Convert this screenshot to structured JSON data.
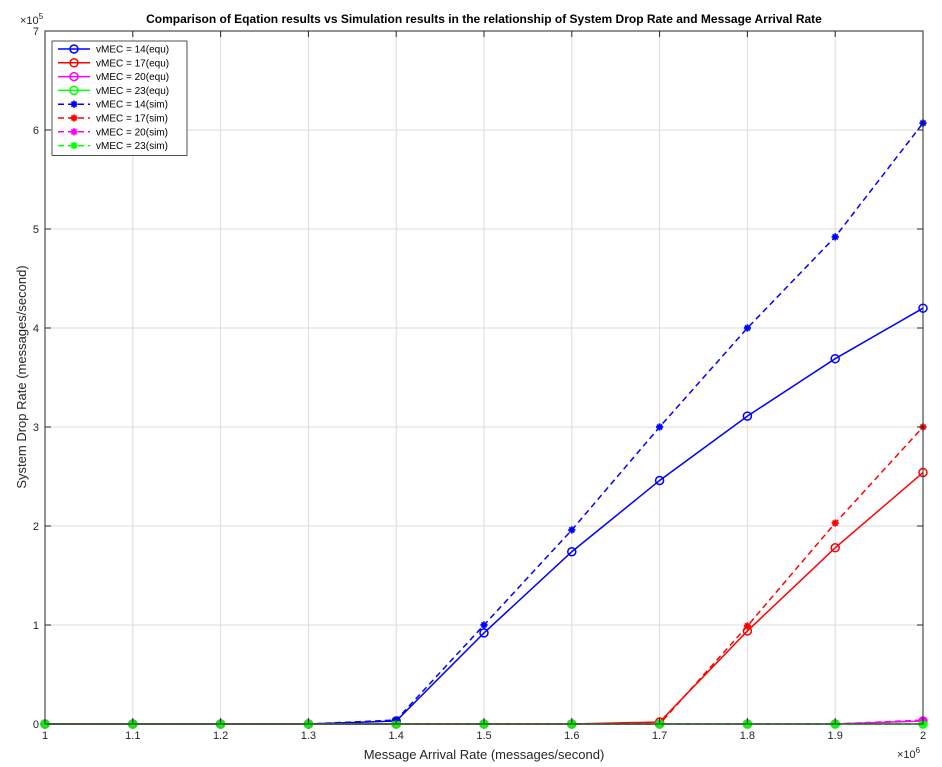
{
  "chart_data": {
    "type": "line",
    "title": "Comparison of Eqation results vs Simulation results in the relationship of System Drop Rate and Message Arrival Rate",
    "xlabel": "Message Arrival Rate (messages/second)",
    "ylabel": "System Drop Rate (messages/second)",
    "x_exponent_label": "×10",
    "x_exponent_power": "6",
    "y_exponent_label": "×10",
    "y_exponent_power": "5",
    "x_scale": 1000000,
    "y_scale": 100000,
    "xlim": [
      1,
      2
    ],
    "ylim": [
      0,
      7
    ],
    "xticks": [
      "1",
      "1.1",
      "1.2",
      "1.3",
      "1.4",
      "1.5",
      "1.6",
      "1.7",
      "1.8",
      "1.9",
      "2"
    ],
    "yticks": [
      "0",
      "1",
      "2",
      "3",
      "4",
      "5",
      "6",
      "7"
    ],
    "grid": true,
    "legend_position": "top-left",
    "x": [
      1.0,
      1.1,
      1.2,
      1.3,
      1.4,
      1.5,
      1.6,
      1.7,
      1.8,
      1.9,
      2.0
    ],
    "series": [
      {
        "name": "vMEC = 14(equ)",
        "color": "#0000ff",
        "style": "solid",
        "marker": "circle",
        "values": [
          0,
          0,
          0,
          0,
          0.03,
          0.92,
          1.74,
          2.46,
          3.11,
          3.69,
          4.2
        ]
      },
      {
        "name": "vMEC = 17(equ)",
        "color": "#ff0000",
        "style": "solid",
        "marker": "circle",
        "values": [
          0,
          0,
          0,
          0,
          0,
          0,
          0,
          0.02,
          0.94,
          1.78,
          2.54
        ]
      },
      {
        "name": "vMEC = 20(equ)",
        "color": "#ff00ff",
        "style": "solid",
        "marker": "circle",
        "values": [
          0,
          0,
          0,
          0,
          0,
          0,
          0,
          0,
          0,
          0,
          0.03
        ]
      },
      {
        "name": "vMEC = 23(equ)",
        "color": "#00ff00",
        "style": "solid",
        "marker": "circle",
        "values": [
          0,
          0,
          0,
          0,
          0,
          0,
          0,
          0,
          0,
          0,
          0
        ]
      },
      {
        "name": "vMEC = 14(sim)",
        "color": "#0000ff",
        "style": "dashed",
        "marker": "star",
        "values": [
          0,
          0,
          0,
          0,
          0.04,
          1.0,
          1.96,
          3.0,
          4.0,
          4.92,
          6.07
        ]
      },
      {
        "name": "vMEC = 17(sim)",
        "color": "#ff0000",
        "style": "dashed",
        "marker": "star",
        "values": [
          0,
          0,
          0,
          0,
          0,
          0,
          0,
          0,
          0.99,
          2.03,
          3.0
        ]
      },
      {
        "name": "vMEC = 20(sim)",
        "color": "#ff00ff",
        "style": "dashed",
        "marker": "star",
        "values": [
          0,
          0,
          0,
          0,
          0,
          0,
          0,
          0,
          0,
          0,
          0.04
        ]
      },
      {
        "name": "vMEC = 23(sim)",
        "color": "#00ff00",
        "style": "dashed",
        "marker": "star",
        "values": [
          0,
          0,
          0,
          0,
          0,
          0,
          0,
          0,
          0,
          0,
          0
        ]
      }
    ]
  }
}
